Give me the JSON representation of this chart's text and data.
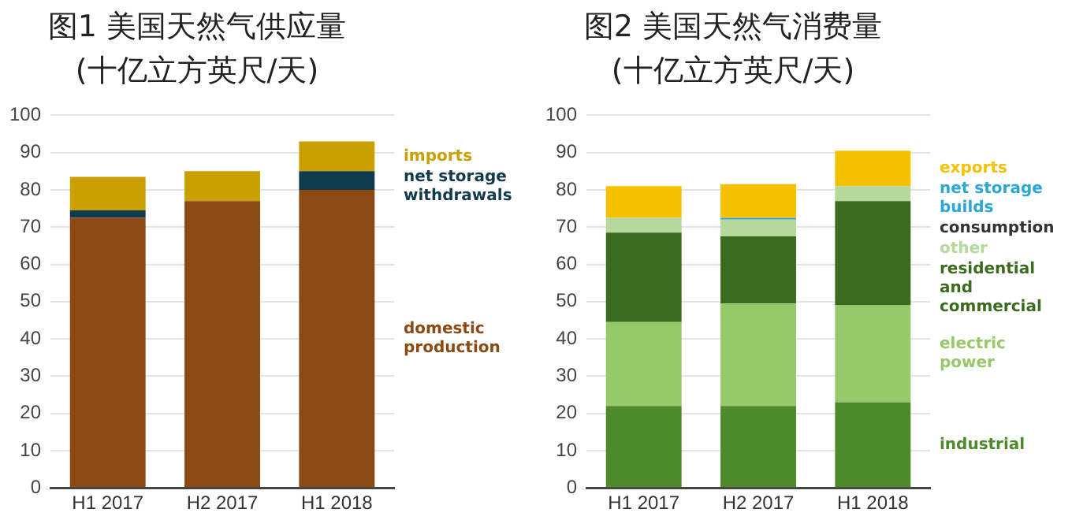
{
  "chart_data": [
    {
      "type": "bar",
      "title": "图1 美国天然气供应量",
      "subtitle": "(十亿立方英尺/天)",
      "categories": [
        "H1 2017",
        "H2 2017",
        "H1 2018"
      ],
      "stacked": true,
      "grid": "y",
      "legend": "right",
      "ylim": [
        0,
        100
      ],
      "yticks": [
        0,
        10,
        20,
        30,
        40,
        50,
        60,
        70,
        80,
        90,
        100
      ],
      "series": [
        {
          "name": "domestic production",
          "color": "#8b4a14",
          "values": [
            72.5,
            77,
            80
          ]
        },
        {
          "name": "net storage withdrawals",
          "color": "#123a4e",
          "values": [
            2,
            0,
            5
          ]
        },
        {
          "name": "imports",
          "color": "#c9a000",
          "values": [
            9,
            8,
            8
          ]
        }
      ]
    },
    {
      "type": "bar",
      "title": "图2 美国天然气消费量",
      "subtitle": "(十亿立方英尺/天)",
      "categories": [
        "H1 2017",
        "H2 2017",
        "H1 2018"
      ],
      "stacked": true,
      "grid": "y",
      "legend": "right",
      "ylim": [
        0,
        100
      ],
      "yticks": [
        0,
        10,
        20,
        30,
        40,
        50,
        60,
        70,
        80,
        90,
        100
      ],
      "annotations": [
        "consumption"
      ],
      "series": [
        {
          "name": "industrial",
          "color": "#4e8a2a",
          "values": [
            22,
            22,
            23
          ]
        },
        {
          "name": "electric power",
          "color": "#96c96a",
          "values": [
            22.5,
            27.5,
            26
          ]
        },
        {
          "name": "residential and commercial",
          "color": "#3a6b1e",
          "values": [
            24,
            18,
            28
          ]
        },
        {
          "name": "other",
          "color": "#b5d99a",
          "values": [
            4,
            4.5,
            4
          ]
        },
        {
          "name": "net storage builds",
          "color": "#2aa7d6",
          "values": [
            0,
            0.5,
            0
          ]
        },
        {
          "name": "exports",
          "color": "#f7c000",
          "values": [
            8.5,
            9,
            9.5
          ]
        }
      ]
    }
  ]
}
